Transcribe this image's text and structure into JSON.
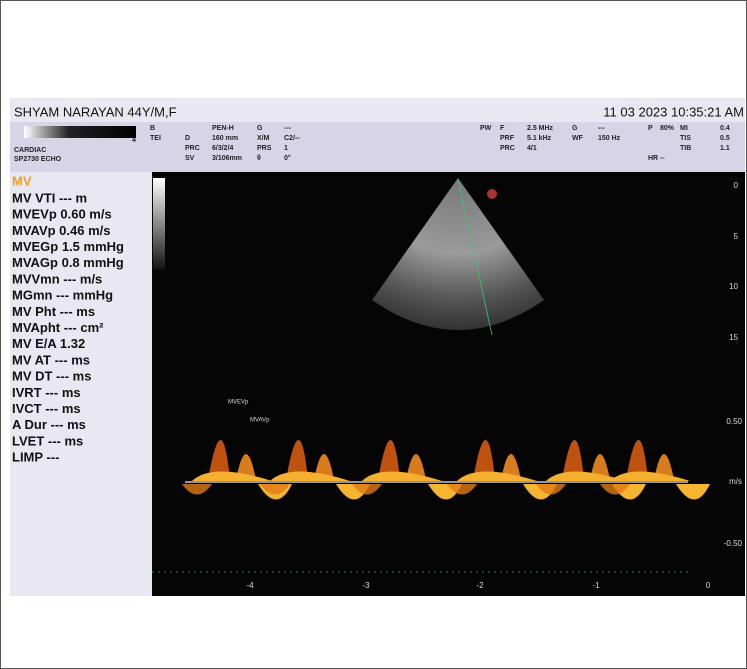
{
  "header": {
    "patient": "SHYAM NARAYAN 44Y/M,F",
    "datetime": "11 03 2023 10:35:21 AM",
    "gray_bar": [
      "1",
      "4"
    ],
    "preset": [
      "CARDIAC",
      "SP2730  ECHO"
    ]
  },
  "params_left": [
    [
      "B",
      "PEN-H",
      "G",
      "---"
    ],
    [
      "TEI",
      "D",
      "160 mm",
      "X/M",
      "C2/--"
    ],
    [
      "PRC",
      "6/3/2/4",
      "PRS",
      "1"
    ],
    [
      "SV",
      "3/106mm",
      "θ",
      "0°"
    ]
  ],
  "params_right": [
    [
      "PW",
      "F",
      "2.5 MHz",
      "G",
      "---",
      "P",
      "80%",
      "MI",
      "0.4"
    ],
    [
      "PRF",
      "5.1 kHz",
      "WF",
      "150 Hz",
      "TIS",
      "0.5"
    ],
    [
      "PRC",
      "4/1",
      "TIB",
      "1.1"
    ],
    [
      "HR --"
    ]
  ],
  "measurements": {
    "title": "MV",
    "items": [
      "MV VTI --- m",
      "MVEVp 0.60 m/s",
      "MVAVp 0.46 m/s",
      "MVEGp 1.5 mmHg",
      "MVAGp 0.8 mmHg",
      "MVVmn --- m/s",
      "MGmn --- mmHg",
      "MV Pht --- ms",
      "MVAph​t --- cm²",
      "MV E/A 1.32",
      "MV AT --- ms",
      "MV DT --- ms",
      "IVRT --- ms",
      "IVCT --- ms",
      "A Dur --- ms",
      "LVET --- ms",
      "LIMP ---"
    ]
  },
  "depth_scale": [
    "0",
    "5",
    "10",
    "15"
  ],
  "velocity_scale": [
    "0.50",
    "m/s",
    "-0.50"
  ],
  "time_scale": [
    "-4",
    "-3",
    "-2",
    "-1",
    "0"
  ],
  "doppler_markers": [
    "MVEVp",
    "MVAVp"
  ]
}
